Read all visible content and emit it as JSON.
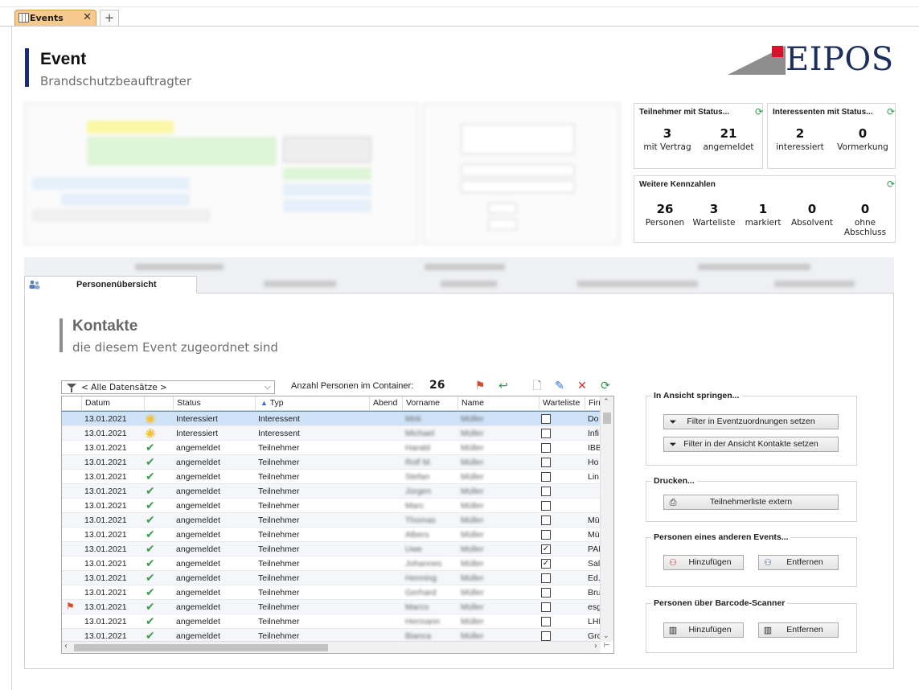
{
  "window": {
    "doc_tab_label": "Events",
    "doc_tab_close": "✕",
    "new_tab_symbol": "+"
  },
  "header": {
    "title": "Event",
    "subtitle": "Brandschutzbeauftragter",
    "logo_text": "EIPOS"
  },
  "stats": {
    "participants_title": "Teilnehmer mit Status...",
    "participants": [
      {
        "value": "3",
        "label": "mit Vertrag"
      },
      {
        "value": "21",
        "label": "angemeldet"
      }
    ],
    "interested_title": "Interessenten mit Status...",
    "interested": [
      {
        "value": "2",
        "label": "interessiert"
      },
      {
        "value": "0",
        "label": "Vormerkung"
      }
    ],
    "more_title": "Weitere Kennzahlen",
    "more": [
      {
        "value": "26",
        "label": "Personen"
      },
      {
        "value": "3",
        "label": "Warteliste"
      },
      {
        "value": "1",
        "label": "markiert"
      },
      {
        "value": "0",
        "label": "Absolvent"
      },
      {
        "value": "0",
        "label": "ohne Abschluss"
      }
    ]
  },
  "tabs": {
    "active_label": "Personenübersicht"
  },
  "section": {
    "title": "Kontakte",
    "subtitle": "die diesem Event zugeordnet sind"
  },
  "toolbar": {
    "filter_value": "< Alle Datensätze >",
    "count_label": "Anzahl Personen im Container:",
    "count_value": "26"
  },
  "grid": {
    "columns": [
      "Datum",
      "",
      "Status",
      "Typ",
      "Abend",
      "Vorname",
      "Name",
      "Warteliste",
      "Firr"
    ],
    "rows": [
      {
        "datum": "13.01.2021",
        "icon": "sun",
        "status": "Interessiert",
        "typ": "Interessent",
        "vorname": "Mirk",
        "name": "Müller",
        "warteliste": false,
        "firma": "Do",
        "flag": false,
        "selected": true
      },
      {
        "datum": "13.01.2021",
        "icon": "sun",
        "status": "Interessiert",
        "typ": "Interessent",
        "vorname": "Michael",
        "name": "Müller",
        "warteliste": false,
        "firma": "Infi",
        "flag": false,
        "selected": false
      },
      {
        "datum": "13.01.2021",
        "icon": "check",
        "status": "angemeldet",
        "typ": "Teilnehmer",
        "vorname": "Harald",
        "name": "Müller",
        "warteliste": false,
        "firma": "IBB",
        "flag": false,
        "selected": false
      },
      {
        "datum": "13.01.2021",
        "icon": "check",
        "status": "angemeldet",
        "typ": "Teilnehmer",
        "vorname": "Rolf M.",
        "name": "Müller",
        "warteliste": false,
        "firma": "Ho",
        "flag": false,
        "selected": false
      },
      {
        "datum": "13.01.2021",
        "icon": "check",
        "status": "angemeldet",
        "typ": "Teilnehmer",
        "vorname": "Stefan",
        "name": "Müller",
        "warteliste": false,
        "firma": "Lin",
        "flag": false,
        "selected": false
      },
      {
        "datum": "13.01.2021",
        "icon": "check",
        "status": "angemeldet",
        "typ": "Teilnehmer",
        "vorname": "Jürgen",
        "name": "Müller",
        "warteliste": false,
        "firma": "",
        "flag": false,
        "selected": false
      },
      {
        "datum": "13.01.2021",
        "icon": "check",
        "status": "angemeldet",
        "typ": "Teilnehmer",
        "vorname": "Marc",
        "name": "Müller",
        "warteliste": false,
        "firma": "",
        "flag": false,
        "selected": false
      },
      {
        "datum": "13.01.2021",
        "icon": "check",
        "status": "angemeldet",
        "typ": "Teilnehmer",
        "vorname": "Thomas",
        "name": "Müller",
        "warteliste": false,
        "firma": "Mü",
        "flag": false,
        "selected": false
      },
      {
        "datum": "13.01.2021",
        "icon": "check",
        "status": "angemeldet",
        "typ": "Teilnehmer",
        "vorname": "Albers",
        "name": "Müller",
        "warteliste": false,
        "firma": "Mü",
        "flag": false,
        "selected": false
      },
      {
        "datum": "13.01.2021",
        "icon": "check",
        "status": "angemeldet",
        "typ": "Teilnehmer",
        "vorname": "Uwe",
        "name": "Müller",
        "warteliste": true,
        "firma": "PAN",
        "flag": false,
        "selected": false
      },
      {
        "datum": "13.01.2021",
        "icon": "check",
        "status": "angemeldet",
        "typ": "Teilnehmer",
        "vorname": "Johannes",
        "name": "Müller",
        "warteliste": true,
        "firma": "Sal",
        "flag": false,
        "selected": false
      },
      {
        "datum": "13.01.2021",
        "icon": "check",
        "status": "angemeldet",
        "typ": "Teilnehmer",
        "vorname": "Henning",
        "name": "Müller",
        "warteliste": false,
        "firma": "Ed.",
        "flag": false,
        "selected": false
      },
      {
        "datum": "13.01.2021",
        "icon": "check",
        "status": "angemeldet",
        "typ": "Teilnehmer",
        "vorname": "Gerhard",
        "name": "Müller",
        "warteliste": false,
        "firma": "Bru",
        "flag": false,
        "selected": false
      },
      {
        "datum": "13.01.2021",
        "icon": "check",
        "status": "angemeldet",
        "typ": "Teilnehmer",
        "vorname": "Marco",
        "name": "Müller",
        "warteliste": false,
        "firma": "esg",
        "flag": true,
        "selected": false
      },
      {
        "datum": "13.01.2021",
        "icon": "check",
        "status": "angemeldet",
        "typ": "Teilnehmer",
        "vorname": "Hermann",
        "name": "Müller",
        "warteliste": false,
        "firma": "LHI",
        "flag": false,
        "selected": false
      },
      {
        "datum": "13.01.2021",
        "icon": "check",
        "status": "angemeldet",
        "typ": "Teilnehmer",
        "vorname": "Bianca",
        "name": "Müller",
        "warteliste": false,
        "firma": "Grc",
        "flag": false,
        "selected": false
      }
    ]
  },
  "right": {
    "jump_title": "In Ansicht springen...",
    "jump_btn1": "Filter in Eventzuordnungen setzen",
    "jump_btn2": "Filter in der Ansicht Kontakte setzen",
    "print_title": "Drucken...",
    "print_btn": "Teilnehmerliste extern",
    "other_title": "Personen eines anderen Events...",
    "other_add": "Hinzufügen",
    "other_remove": "Entfernen",
    "barcode_title": "Personen über Barcode-Scanner",
    "barcode_add": "Hinzufügen",
    "barcode_remove": "Entfernen"
  }
}
